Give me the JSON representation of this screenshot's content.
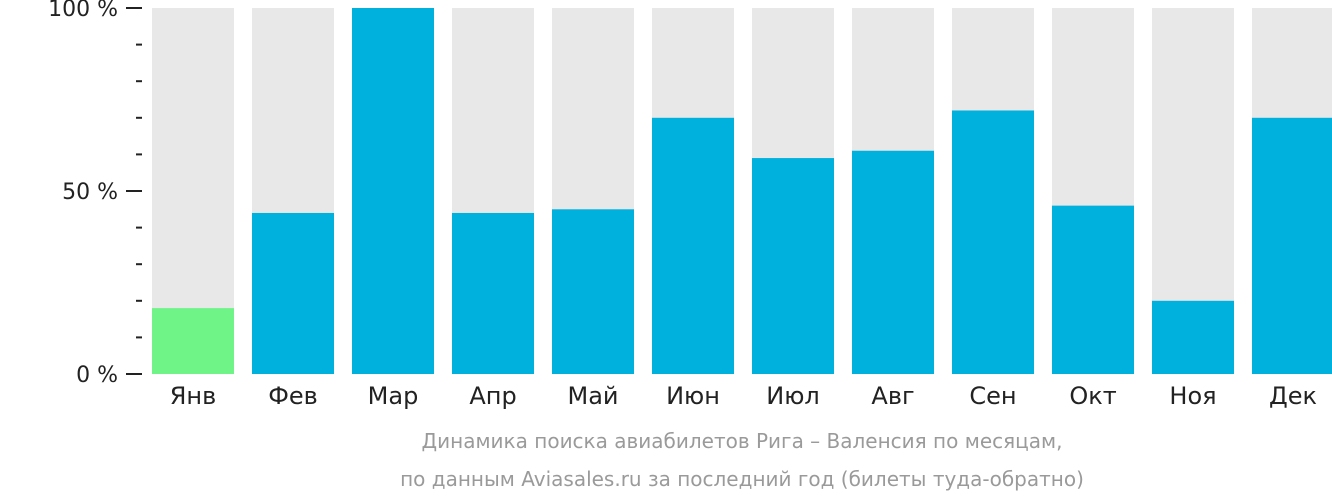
{
  "chart_data": {
    "type": "bar",
    "categories": [
      "Янв",
      "Фев",
      "Мар",
      "Апр",
      "Май",
      "Июн",
      "Июл",
      "Авг",
      "Сен",
      "Окт",
      "Ноя",
      "Дек"
    ],
    "values": [
      18,
      44,
      100,
      44,
      45,
      70,
      59,
      61,
      72,
      46,
      20,
      70
    ],
    "ylim": [
      0,
      100
    ],
    "yticks": [
      {
        "value": 0,
        "label": "0 %"
      },
      {
        "value": 50,
        "label": "50 %"
      },
      {
        "value": 100,
        "label": "100 %"
      }
    ],
    "highlight_index": 0,
    "colors": {
      "bar": "#00b0dd",
      "highlight": "#6ef487",
      "track": "#e8e8e8",
      "axis": "#222222"
    }
  },
  "caption": {
    "line1": "Динамика поиска авиабилетов Рига – Валенсия по месяцам,",
    "line2": "по данным Aviasales.ru за последний год (билеты туда-обратно)"
  }
}
